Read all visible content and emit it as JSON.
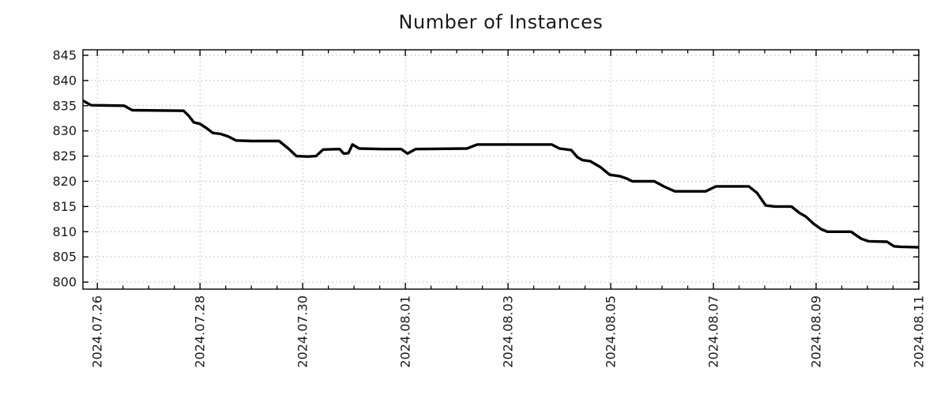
{
  "chart_data": {
    "type": "line",
    "title": "Number of Instances",
    "xlabel": "",
    "ylabel": "",
    "legend": "none",
    "grid": "dotted",
    "background_color": "#ffffff",
    "line_color": "#000000",
    "grid_color": "#b3b3b3",
    "axis_color": "#000000",
    "text_color": "#1a1a1a",
    "x_tick_labels": [
      "2024.07.26",
      "2024.07.28",
      "2024.07.30",
      "2024.08.01",
      "2024.08.03",
      "2024.08.05",
      "2024.08.07",
      "2024.08.09",
      "2024.08.11"
    ],
    "x_tick_days": [
      0,
      2,
      4,
      6,
      8,
      10,
      12,
      14,
      16
    ],
    "x_minor_step_days": 0.5,
    "y_ticks": [
      800,
      805,
      810,
      815,
      820,
      825,
      830,
      835,
      840,
      845
    ],
    "xlim_days": [
      -0.28,
      16
    ],
    "ylim": [
      798.6,
      846.1
    ],
    "series": [
      {
        "name": "instances",
        "points": [
          [
            -0.28,
            836.0
          ],
          [
            -0.12,
            835.1
          ],
          [
            0.52,
            835.0
          ],
          [
            0.68,
            834.1
          ],
          [
            1.68,
            834.0
          ],
          [
            1.78,
            833.0
          ],
          [
            1.88,
            831.7
          ],
          [
            2.0,
            831.4
          ],
          [
            2.12,
            830.6
          ],
          [
            2.25,
            829.6
          ],
          [
            2.4,
            829.4
          ],
          [
            2.55,
            828.9
          ],
          [
            2.7,
            828.1
          ],
          [
            3.0,
            828.0
          ],
          [
            3.54,
            828.0
          ],
          [
            3.72,
            826.5
          ],
          [
            3.88,
            825.0
          ],
          [
            4.1,
            824.9
          ],
          [
            4.26,
            825.0
          ],
          [
            4.4,
            826.3
          ],
          [
            4.72,
            826.4
          ],
          [
            4.8,
            825.5
          ],
          [
            4.89,
            825.6
          ],
          [
            4.97,
            827.3
          ],
          [
            5.1,
            826.5
          ],
          [
            5.55,
            826.4
          ],
          [
            5.92,
            826.4
          ],
          [
            6.04,
            825.5
          ],
          [
            6.2,
            826.4
          ],
          [
            7.2,
            826.5
          ],
          [
            7.4,
            827.3
          ],
          [
            8.0,
            827.3
          ],
          [
            8.85,
            827.3
          ],
          [
            9.0,
            826.5
          ],
          [
            9.23,
            826.2
          ],
          [
            9.35,
            824.8
          ],
          [
            9.45,
            824.2
          ],
          [
            9.6,
            824.0
          ],
          [
            9.8,
            822.8
          ],
          [
            9.98,
            821.3
          ],
          [
            10.18,
            821.0
          ],
          [
            10.3,
            820.6
          ],
          [
            10.42,
            820.0
          ],
          [
            10.85,
            820.0
          ],
          [
            11.05,
            818.9
          ],
          [
            11.25,
            818.0
          ],
          [
            11.6,
            818.0
          ],
          [
            11.85,
            818.0
          ],
          [
            12.05,
            819.0
          ],
          [
            12.4,
            819.0
          ],
          [
            12.69,
            819.0
          ],
          [
            12.85,
            817.7
          ],
          [
            13.02,
            815.2
          ],
          [
            13.2,
            815.0
          ],
          [
            13.52,
            815.0
          ],
          [
            13.68,
            813.7
          ],
          [
            13.8,
            813.0
          ],
          [
            13.95,
            811.6
          ],
          [
            14.1,
            810.5
          ],
          [
            14.22,
            810.0
          ],
          [
            14.68,
            810.0
          ],
          [
            14.88,
            808.6
          ],
          [
            15.02,
            808.1
          ],
          [
            15.38,
            808.0
          ],
          [
            15.52,
            807.1
          ],
          [
            15.65,
            807.0
          ],
          [
            16.0,
            806.9
          ]
        ]
      }
    ]
  }
}
